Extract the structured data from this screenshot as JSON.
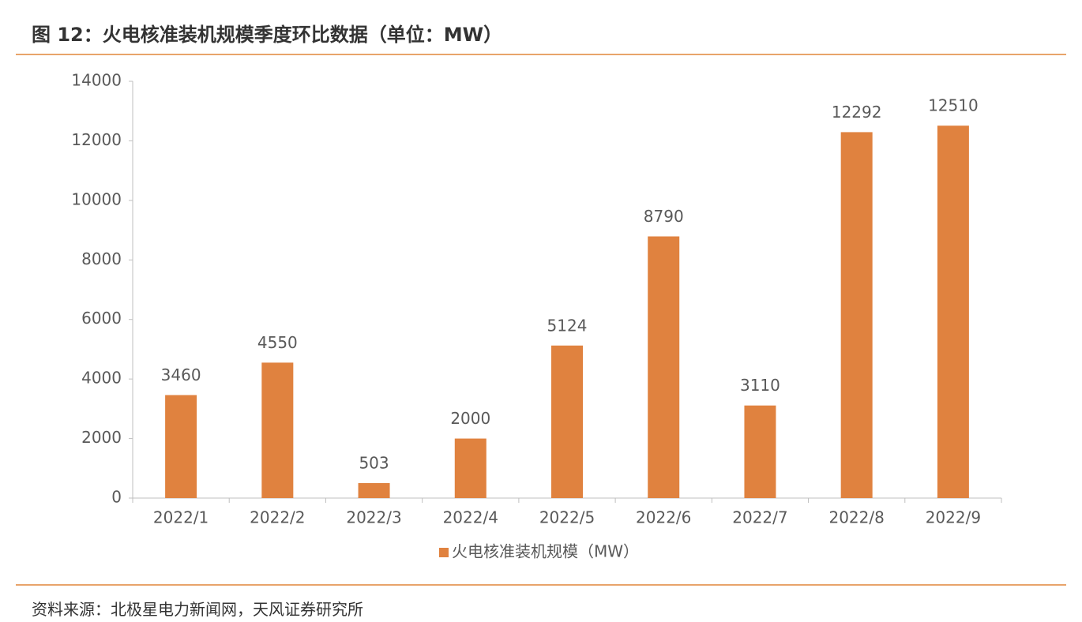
{
  "title": "图 12：火电核准装机规模季度环比数据（单位：MW）",
  "chart_data": {
    "type": "bar",
    "categories": [
      "2022/1",
      "2022/2",
      "2022/3",
      "2022/4",
      "2022/5",
      "2022/6",
      "2022/7",
      "2022/8",
      "2022/9"
    ],
    "series": [
      {
        "name": "火电核准装机规模（MW）",
        "color": "#e0823f",
        "values": [
          3460,
          4550,
          503,
          2000,
          5124,
          8790,
          3110,
          12292,
          12510
        ]
      }
    ],
    "ylim": [
      0,
      14000
    ],
    "yticks": [
      0,
      2000,
      4000,
      6000,
      8000,
      10000,
      12000,
      14000
    ],
    "grid": false,
    "legend": "bottom",
    "data_labels": true
  },
  "source": "资料来源：北极星电力新闻网，天风证券研究所"
}
